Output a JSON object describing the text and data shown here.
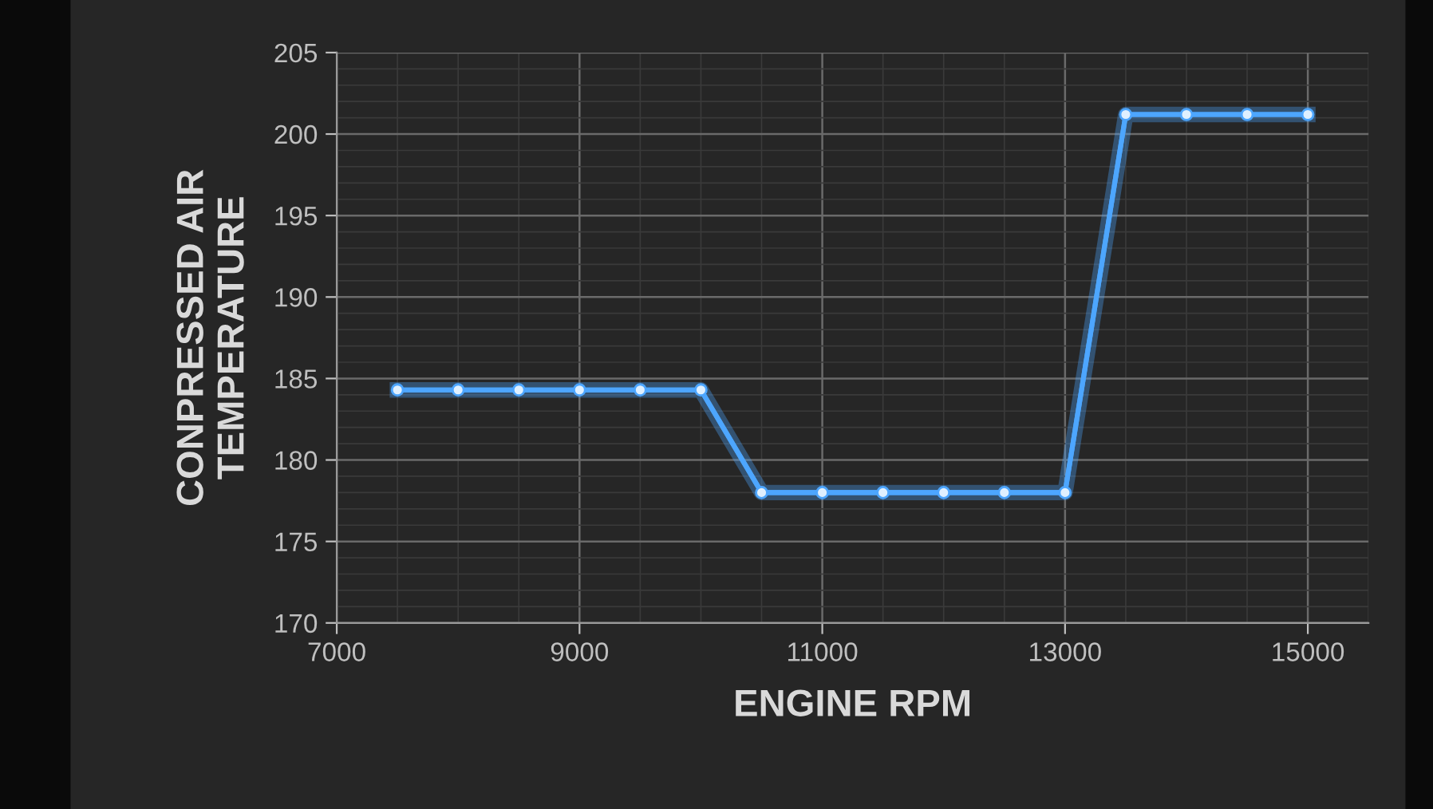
{
  "chart_data": {
    "type": "line",
    "xlabel": "ENGINE RPM",
    "ylabel": "CONPRESSED AIR\nTEMPERATURE",
    "x": [
      7500,
      8000,
      8500,
      9000,
      9500,
      10000,
      10500,
      11000,
      11500,
      12000,
      12500,
      13000,
      13500,
      14000,
      14500,
      15000
    ],
    "series": [
      {
        "color": "#4da6ff",
        "values": [
          184.3,
          184.3,
          184.3,
          184.3,
          184.3,
          184.3,
          178.0,
          178.0,
          178.0,
          178.0,
          178.0,
          178.0,
          201.2,
          201.2,
          201.2,
          201.2
        ]
      }
    ],
    "xlim": [
      7000,
      15500
    ],
    "xticks": [
      7000,
      9000,
      11000,
      13000,
      15000
    ],
    "ylim": [
      170,
      205
    ],
    "yticks": [
      170,
      175,
      180,
      185,
      190,
      195,
      200,
      205
    ],
    "grid": true,
    "marker": "circle",
    "line_style": "solid",
    "legend": false
  }
}
